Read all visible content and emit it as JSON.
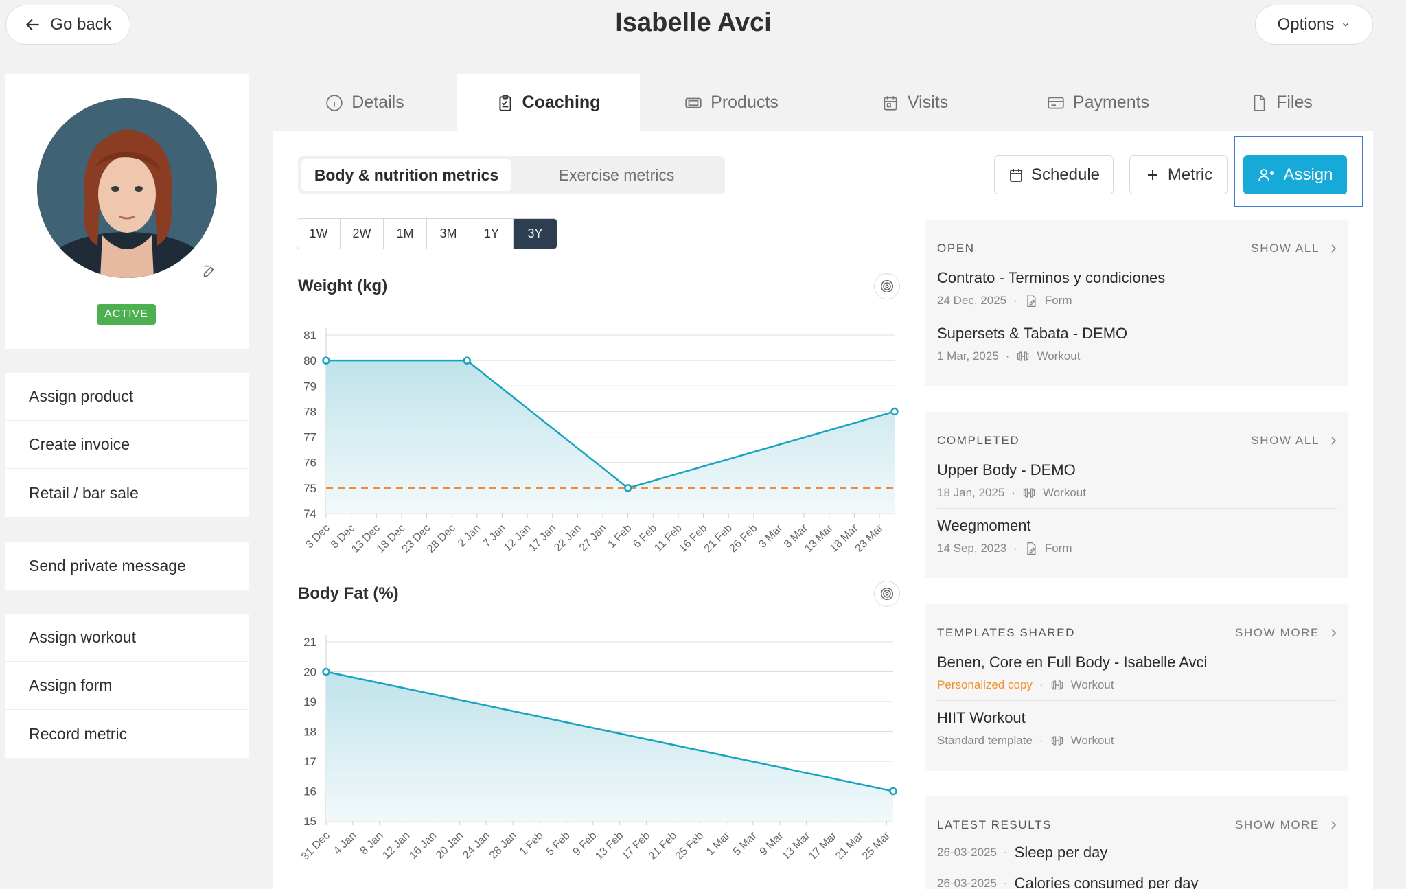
{
  "header": {
    "back_label": "Go back",
    "title": "Isabelle Avci",
    "options_label": "Options"
  },
  "profile": {
    "status": "ACTIVE"
  },
  "actions": {
    "group1": [
      "Assign product",
      "Create invoice",
      "Retail / bar sale"
    ],
    "group2": [
      "Send private message"
    ],
    "group3": [
      "Assign workout",
      "Assign form",
      "Record metric"
    ]
  },
  "tabs": [
    {
      "label": "Details",
      "icon": "info-icon"
    },
    {
      "label": "Coaching",
      "icon": "clipboard-icon",
      "active": true
    },
    {
      "label": "Products",
      "icon": "ticket-icon"
    },
    {
      "label": "Visits",
      "icon": "calendar-icon"
    },
    {
      "label": "Payments",
      "icon": "card-icon"
    },
    {
      "label": "Files",
      "icon": "file-icon"
    }
  ],
  "metrics_tabs": {
    "body": "Body & nutrition metrics",
    "exercise": "Exercise metrics"
  },
  "toolbar": {
    "schedule": "Schedule",
    "metric": "Metric",
    "assign": "Assign"
  },
  "ranges": [
    "1W",
    "2W",
    "1M",
    "3M",
    "1Y",
    "3Y"
  ],
  "charts_title": {
    "weight": "Weight (kg)",
    "bodyfat": "Body Fat (%)"
  },
  "chart_data": [
    {
      "type": "area",
      "title": "Weight (kg)",
      "x": [
        "3 Dec",
        "8 Dec",
        "13 Dec",
        "18 Dec",
        "23 Dec",
        "28 Dec",
        "2 Jan",
        "7 Jan",
        "12 Jan",
        "17 Jan",
        "22 Jan",
        "27 Jan",
        "1 Feb",
        "6 Feb",
        "11 Feb",
        "16 Feb",
        "21 Feb",
        "26 Feb",
        "3 Mar",
        "8 Mar",
        "13 Mar",
        "18 Mar",
        "23 Mar"
      ],
      "series": [
        {
          "points": [
            {
              "x": "3 Dec",
              "y": 80
            },
            {
              "x": "31 Dec",
              "y": 80
            },
            {
              "x": "1 Feb",
              "y": 75
            },
            {
              "x": "26 Mar",
              "y": 78
            }
          ]
        }
      ],
      "goal": 75,
      "yticks": [
        74,
        75,
        76,
        77,
        78,
        79,
        80,
        81
      ],
      "ylim": [
        74,
        81
      ],
      "color": "#18a3bf",
      "goal_color": "#ee8c3a"
    },
    {
      "type": "area",
      "title": "Body Fat (%)",
      "x": [
        "31 Dec",
        "4 Jan",
        "8 Jan",
        "12 Jan",
        "16 Jan",
        "20 Jan",
        "24 Jan",
        "28 Jan",
        "1 Feb",
        "5 Feb",
        "9 Feb",
        "13 Feb",
        "17 Feb",
        "21 Feb",
        "25 Feb",
        "1 Mar",
        "5 Mar",
        "9 Mar",
        "13 Mar",
        "17 Mar",
        "21 Mar",
        "25 Mar"
      ],
      "series": [
        {
          "points": [
            {
              "x": "31 Dec",
              "y": 20
            },
            {
              "x": "26 Mar",
              "y": 16
            }
          ]
        }
      ],
      "yticks": [
        15,
        16,
        17,
        18,
        19,
        20,
        21
      ],
      "ylim": [
        15,
        21
      ],
      "color": "#18a3bf"
    }
  ],
  "open": {
    "heading": "OPEN",
    "more": "SHOW ALL",
    "items": [
      {
        "title": "Contrato - Terminos y condiciones",
        "date": "24 Dec, 2025",
        "type": "Form",
        "icon": "form-icon"
      },
      {
        "title": "Supersets & Tabata - DEMO",
        "date": "1 Mar, 2025",
        "type": "Workout",
        "icon": "dumbbell-icon"
      }
    ]
  },
  "completed": {
    "heading": "COMPLETED",
    "more": "SHOW ALL",
    "items": [
      {
        "title": "Upper Body - DEMO",
        "date": "18 Jan, 2025",
        "type": "Workout",
        "icon": "dumbbell-icon"
      },
      {
        "title": "Weegmoment",
        "date": "14 Sep, 2023",
        "type": "Form",
        "icon": "form-icon"
      }
    ]
  },
  "templates": {
    "heading": "TEMPLATES SHARED",
    "more": "SHOW MORE",
    "items": [
      {
        "title": "Benen, Core en Full Body - Isabelle Avci",
        "date": "Personalized copy",
        "type": "Workout",
        "icon": "dumbbell-icon"
      },
      {
        "title": "HIIT Workout",
        "date": "Standard template",
        "type": "Workout",
        "icon": "dumbbell-icon"
      }
    ]
  },
  "results": {
    "heading": "LATEST RESULTS",
    "more": "SHOW MORE",
    "items": [
      {
        "date": "26-03-2025",
        "sep": "-",
        "title": "Sleep per day"
      },
      {
        "date": "26-03-2025",
        "sep": "-",
        "title": "Calories consumed per day"
      }
    ]
  },
  "colors": {
    "accent": "#17a9d8",
    "active_badge": "#4caf50",
    "range_active": "#2c3e50",
    "highlight_frame": "#3f78cf"
  }
}
